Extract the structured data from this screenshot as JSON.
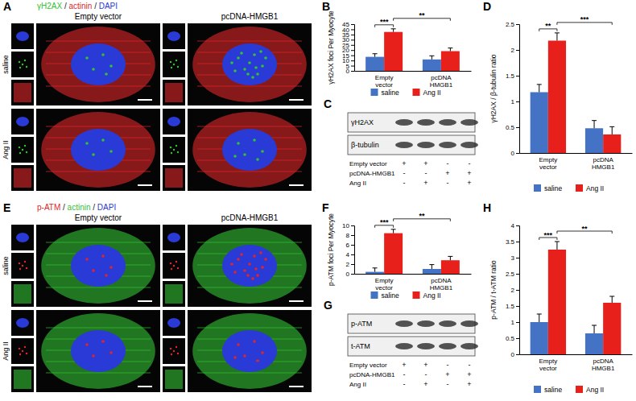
{
  "chart_data": [
    {
      "type": "bar",
      "title": "B",
      "y_label": "γH2AX foci Per Myocyte",
      "categories": [
        "Empty vector",
        "pcDNA HMGB1"
      ],
      "series": [
        {
          "name": "saline",
          "color": "#4472c4",
          "values": [
            13.5,
            11
          ],
          "errors": [
            3,
            3.5
          ]
        },
        {
          "name": "Ang II",
          "color": "#e8201c",
          "values": [
            37.5,
            19
          ],
          "errors": [
            3,
            3
          ]
        }
      ],
      "ylim": [
        0,
        45
      ],
      "yticks": [
        0,
        5,
        10,
        15,
        20,
        25,
        30,
        35,
        40,
        45
      ],
      "legend": "bottom",
      "annotations": [
        {
          "text": "***",
          "from": [
            0,
            0
          ],
          "to": [
            0,
            1
          ]
        },
        {
          "text": "**",
          "from": [
            0,
            1
          ],
          "to": [
            1,
            1
          ]
        }
      ]
    },
    {
      "type": "bar",
      "title": "D",
      "y_label": "γH2AX / β-tubulin ratio",
      "categories": [
        "Empty vector",
        "pcDNA HMGB1"
      ],
      "series": [
        {
          "name": "saline",
          "color": "#4472c4",
          "values": [
            1.18,
            0.48
          ],
          "errors": [
            0.15,
            0.15
          ]
        },
        {
          "name": "Ang II",
          "color": "#e8201c",
          "values": [
            2.18,
            0.36
          ],
          "errors": [
            0.15,
            0.15
          ]
        }
      ],
      "ylim": [
        0,
        2.5
      ],
      "yticks": [
        0,
        0.5,
        1,
        1.5,
        2,
        2.5
      ],
      "legend": "bottom",
      "annotations": [
        {
          "text": "**",
          "from": [
            0,
            0
          ],
          "to": [
            0,
            1
          ]
        },
        {
          "text": "***",
          "from": [
            0,
            1
          ],
          "to": [
            1,
            1
          ]
        }
      ]
    },
    {
      "type": "bar",
      "title": "F",
      "y_label": "p-ATM foci Per Myocyte",
      "categories": [
        "Empty vector",
        "pcDNA HMGB1"
      ],
      "series": [
        {
          "name": "saline",
          "color": "#4472c4",
          "values": [
            0.4,
            1.0
          ],
          "errors": [
            0.8,
            0.9
          ]
        },
        {
          "name": "Ang II",
          "color": "#e8201c",
          "values": [
            8.4,
            2.8
          ],
          "errors": [
            0.8,
            0.8
          ]
        }
      ],
      "ylim": [
        0,
        10
      ],
      "yticks": [
        0,
        2,
        4,
        6,
        8,
        10
      ],
      "legend": "bottom",
      "annotations": [
        {
          "text": "***",
          "from": [
            0,
            0
          ],
          "to": [
            0,
            1
          ]
        },
        {
          "text": "**",
          "from": [
            0,
            1
          ],
          "to": [
            1,
            1
          ]
        }
      ]
    },
    {
      "type": "bar",
      "title": "H",
      "y_label": "p-ATM / t-ATM ratio",
      "categories": [
        "Empty vector",
        "pcDNA HMGB1"
      ],
      "series": [
        {
          "name": "saline",
          "color": "#4472c4",
          "values": [
            1.0,
            0.65
          ],
          "errors": [
            0.25,
            0.25
          ]
        },
        {
          "name": "Ang II",
          "color": "#e8201c",
          "values": [
            3.25,
            1.6
          ],
          "errors": [
            0.25,
            0.2
          ]
        }
      ],
      "ylim": [
        0,
        4
      ],
      "yticks": [
        0,
        0.5,
        1,
        1.5,
        2,
        2.5,
        3,
        3.5,
        4
      ],
      "legend": "bottom",
      "annotations": [
        {
          "text": "***",
          "from": [
            0,
            0
          ],
          "to": [
            0,
            1
          ]
        },
        {
          "text": "**",
          "from": [
            0,
            1
          ],
          "to": [
            1,
            1
          ]
        }
      ]
    }
  ],
  "micrographs": [
    {
      "letter": "A",
      "separator": " / ",
      "stains": [
        {
          "name": "γH2AX",
          "color": "#33c233"
        },
        {
          "name": "actinin",
          "color": "#e0262a"
        },
        {
          "name": "DAPI",
          "color": "#2a3ad6"
        }
      ],
      "columns": [
        "Empty vector",
        "pcDNA-HMGB1"
      ],
      "rows": [
        "saline",
        "Ang II"
      ]
    },
    {
      "letter": "E",
      "separator": " / ",
      "stains": [
        {
          "name": "p-ATM",
          "color": "#e0262a"
        },
        {
          "name": "actinin",
          "color": "#33c233"
        },
        {
          "name": "DAPI",
          "color": "#2a3ad6"
        }
      ],
      "columns": [
        "Empty vector",
        "pcDNA-HMGB1"
      ],
      "rows": [
        "saline",
        "Ang II"
      ]
    }
  ],
  "blots": [
    {
      "letter": "C",
      "bands": [
        "γH2AX",
        "β-tubulin"
      ],
      "conditions": [
        {
          "label": "Empty vector",
          "signs": [
            "+",
            "+",
            "-",
            "-"
          ]
        },
        {
          "label": "pcDNA-HMGB1",
          "signs": [
            "-",
            "-",
            "+",
            "+"
          ]
        },
        {
          "label": "Ang II",
          "signs": [
            "-",
            "+",
            "-",
            "+"
          ]
        }
      ]
    },
    {
      "letter": "G",
      "bands": [
        "p-ATM",
        "t-ATM"
      ],
      "conditions": [
        {
          "label": "Empty vector",
          "signs": [
            "+",
            "+",
            "-",
            "-"
          ]
        },
        {
          "label": "pcDNA-HMGB1",
          "signs": [
            "-",
            "-",
            "+",
            "+"
          ]
        },
        {
          "label": "Ang II",
          "signs": [
            "-",
            "+",
            "-",
            "+"
          ]
        }
      ]
    }
  ]
}
